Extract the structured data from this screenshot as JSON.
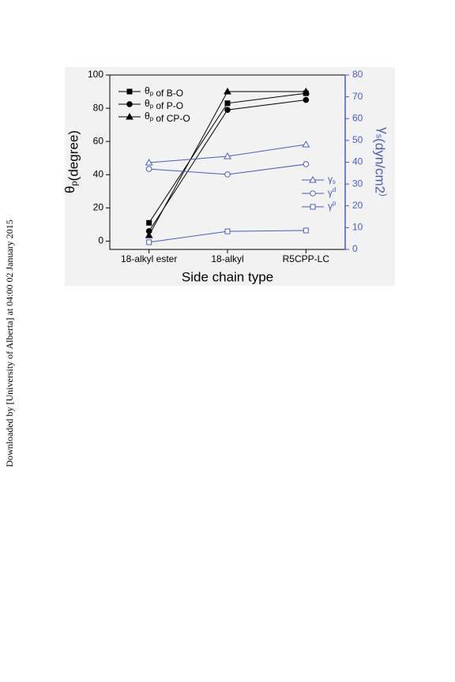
{
  "sidebar": "Downloaded by [University of Alberta] at 04:00 02 January 2015",
  "chart_data": {
    "type": "line",
    "xlabel": "Side chain type",
    "ylabel": "θp(degree)",
    "y2label": "γs(dyn/cm2)",
    "categories": [
      "18-alkyl ester",
      "18-alkyl",
      "R5CPP-LC"
    ],
    "ylim": [
      -5,
      100
    ],
    "yticks": [
      0,
      20,
      40,
      60,
      80,
      100
    ],
    "y2lim": [
      0,
      80
    ],
    "y2ticks": [
      0,
      10,
      20,
      30,
      40,
      50,
      60,
      70,
      80
    ],
    "grid": false,
    "series": [
      {
        "name": "θp of B-O",
        "color": "#000000",
        "marker": "square",
        "filled": true,
        "values": [
          11,
          83,
          89
        ]
      },
      {
        "name": "θp of P-O",
        "color": "#000000",
        "marker": "circle",
        "filled": true,
        "values": [
          6,
          79,
          85
        ]
      },
      {
        "name": "θp of CP-O",
        "color": "#000000",
        "marker": "triangle",
        "filled": true,
        "values": [
          3.5,
          90,
          90
        ]
      },
      {
        "name": "γs",
        "color": "#4a5cc0",
        "marker": "triangle",
        "filled": false,
        "axis": "y2",
        "values": [
          39.8,
          42.7,
          48.1
        ]
      },
      {
        "name": "γd",
        "color": "#4a5cc0",
        "marker": "circle",
        "filled": false,
        "axis": "y2",
        "values": [
          36.9,
          34.4,
          39.1
        ]
      },
      {
        "name": "γp",
        "color": "#4a5cc0",
        "marker": "square",
        "filled": false,
        "axis": "y2",
        "values": [
          3.3,
          8.3,
          8.7
        ]
      }
    ]
  }
}
